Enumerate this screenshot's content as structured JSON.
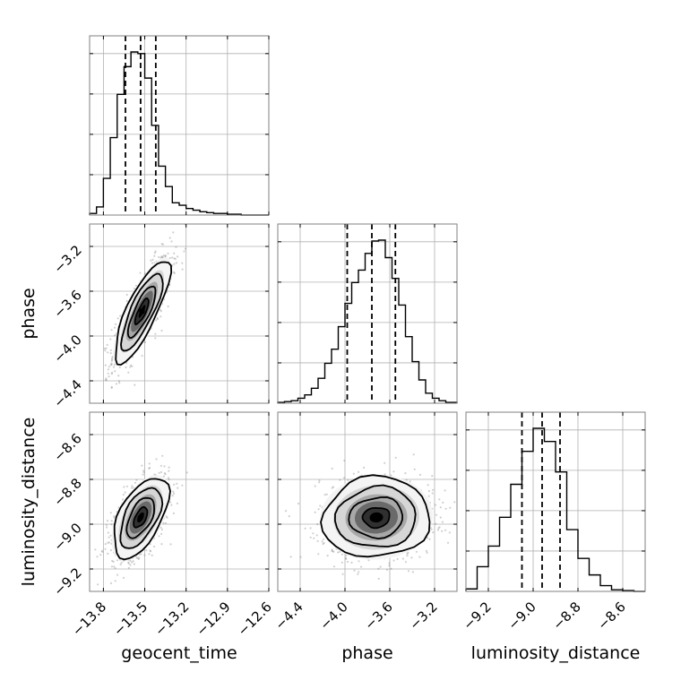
{
  "chart_data": {
    "type": "corner",
    "parameters": [
      "geocent_time",
      "phase",
      "luminosity_distance"
    ],
    "axes": [
      {
        "label": "geocent_time",
        "range": [
          -13.9,
          -12.6
        ],
        "ticks": [
          -13.8,
          -13.5,
          -13.2,
          -12.9,
          -12.6
        ],
        "tick_labels": [
          "−13.8",
          "−13.5",
          "−13.2",
          "−12.9",
          "−12.6"
        ]
      },
      {
        "label": "phase",
        "range": [
          -4.6,
          -3.0
        ],
        "ticks": [
          -4.4,
          -4.0,
          -3.6,
          -3.2
        ],
        "tick_labels": [
          "−4.4",
          "−4.0",
          "−3.6",
          "−3.2"
        ]
      },
      {
        "label": "luminosity_distance",
        "range": [
          -9.3,
          -8.5
        ],
        "ticks": [
          -9.2,
          -9.0,
          -8.8,
          -8.6
        ],
        "tick_labels": [
          "−9.2",
          "−9.0",
          "−8.8",
          "−8.6"
        ]
      }
    ],
    "grid": true,
    "histograms": [
      {
        "parameter": "geocent_time",
        "bins": [
          -13.9,
          -13.85,
          -13.8,
          -13.75,
          -13.7,
          -13.65,
          -13.6,
          -13.55,
          -13.5,
          -13.45,
          -13.4,
          -13.35,
          -13.3,
          -13.25,
          -13.2,
          -13.15,
          -13.1,
          -13.05,
          -13.0,
          -12.95,
          -12.9,
          -12.85,
          -12.8,
          -12.75,
          -12.7,
          -12.65,
          -12.6
        ],
        "counts": [
          2,
          10,
          45,
          95,
          148,
          182,
          200,
          198,
          168,
          110,
          60,
          35,
          15,
          12,
          8,
          6,
          4,
          3,
          2,
          2,
          1,
          1,
          0,
          0,
          0,
          0
        ],
        "quantiles": [
          -13.64,
          -13.53,
          -13.42
        ]
      },
      {
        "parameter": "phase",
        "bins": [
          -4.6,
          -4.54,
          -4.48,
          -4.42,
          -4.36,
          -4.3,
          -4.24,
          -4.18,
          -4.12,
          -4.06,
          -4.0,
          -3.94,
          -3.88,
          -3.82,
          -3.76,
          -3.7,
          -3.64,
          -3.58,
          -3.52,
          -3.46,
          -3.4,
          -3.34,
          -3.28,
          -3.22,
          -3.16,
          -3.1,
          -3.0
        ],
        "counts": [
          1,
          2,
          3,
          6,
          10,
          18,
          30,
          48,
          65,
          92,
          120,
          145,
          160,
          180,
          195,
          196,
          175,
          150,
          118,
          80,
          50,
          28,
          12,
          6,
          3,
          1
        ],
        "quantiles": [
          -3.98,
          -3.76,
          -3.55
        ]
      },
      {
        "parameter": "luminosity_distance",
        "bins": [
          -9.3,
          -9.25,
          -9.2,
          -9.15,
          -9.1,
          -9.05,
          -9.0,
          -8.95,
          -8.9,
          -8.85,
          -8.8,
          -8.75,
          -8.7,
          -8.65,
          -8.6,
          -8.55,
          -8.5
        ],
        "counts": [
          3,
          30,
          55,
          90,
          130,
          170,
          198,
          182,
          145,
          75,
          40,
          20,
          7,
          2,
          1,
          0
        ],
        "quantiles": [
          -9.05,
          -8.96,
          -8.88
        ]
      }
    ],
    "pairs": [
      {
        "x": "geocent_time",
        "y": "phase",
        "center": [
          -13.52,
          -3.78
        ],
        "sigma": [
          0.1,
          0.23
        ],
        "correlation": 0.8
      },
      {
        "x": "geocent_time",
        "y": "luminosity_distance",
        "center": [
          -13.53,
          -8.97
        ],
        "sigma": [
          0.1,
          0.09
        ],
        "correlation": 0.55
      },
      {
        "x": "phase",
        "y": "luminosity_distance",
        "center": [
          -3.72,
          -8.97
        ],
        "sigma": [
          0.24,
          0.09
        ],
        "correlation": 0.05
      }
    ],
    "contour_levels_sigma": [
      0.5,
      1.0,
      1.5,
      2.0
    ]
  }
}
